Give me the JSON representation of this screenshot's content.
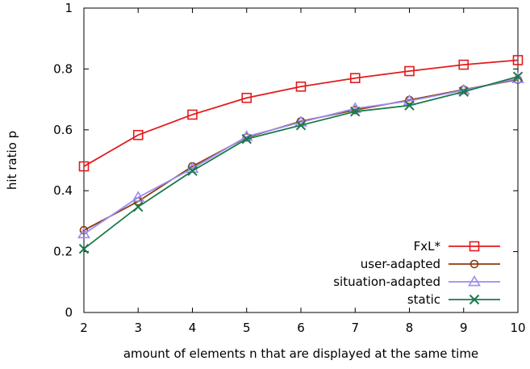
{
  "chart_data": {
    "type": "line",
    "title": "",
    "xlabel": "amount of elements n that are displayed at the same time",
    "ylabel": "hit ratio p",
    "xlim": [
      2,
      10
    ],
    "ylim": [
      0,
      1
    ],
    "x_ticks": [
      2,
      3,
      4,
      5,
      6,
      7,
      8,
      9,
      10
    ],
    "y_ticks": [
      {
        "value": 0,
        "label": "0"
      },
      {
        "value": 0.2,
        "label": "0.2"
      },
      {
        "value": 0.4,
        "label": "0.4"
      },
      {
        "value": 0.6,
        "label": "0.6"
      },
      {
        "value": 0.8,
        "label": "0.8"
      },
      {
        "value": 1,
        "label": "1"
      }
    ],
    "grid": false,
    "legend_position": "bottom-right",
    "x": [
      2,
      3,
      4,
      5,
      6,
      7,
      8,
      9,
      10
    ],
    "series": [
      {
        "name": "FxL*",
        "color": "#e41a1c",
        "marker": "square",
        "values": [
          0.48,
          0.583,
          0.65,
          0.705,
          0.742,
          0.77,
          0.793,
          0.814,
          0.829
        ]
      },
      {
        "name": "user-adapted",
        "color": "#8b3a0f",
        "marker": "circle",
        "values": [
          0.27,
          0.365,
          0.48,
          0.575,
          0.628,
          0.665,
          0.698,
          0.732,
          0.765
        ]
      },
      {
        "name": "situation-adapted",
        "color": "#9b8cf0",
        "marker": "triangle",
        "values": [
          0.258,
          0.378,
          0.473,
          0.578,
          0.625,
          0.67,
          0.695,
          0.73,
          0.768
        ]
      },
      {
        "name": "static",
        "color": "#1b7a4a",
        "marker": "x",
        "values": [
          0.209,
          0.347,
          0.465,
          0.57,
          0.615,
          0.66,
          0.68,
          0.725,
          0.775
        ]
      }
    ]
  }
}
